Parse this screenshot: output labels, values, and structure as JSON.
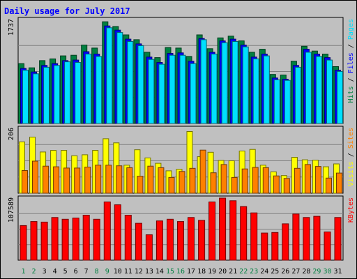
{
  "chart_data": {
    "type": "bar",
    "title": "Daily usage for July 2017",
    "categories": [
      "1",
      "2",
      "3",
      "4",
      "5",
      "6",
      "7",
      "8",
      "9",
      "10",
      "11",
      "12",
      "13",
      "14",
      "15",
      "16",
      "17",
      "18",
      "19",
      "20",
      "21",
      "22",
      "23",
      "24",
      "25",
      "26",
      "27",
      "28",
      "29",
      "30",
      "31"
    ],
    "weekend_days": [
      "1",
      "2",
      "8",
      "9",
      "15",
      "16",
      "22",
      "23",
      "29",
      "30"
    ],
    "panels": [
      {
        "id": "hits",
        "max_label": "1737",
        "ymax": 1737,
        "series": [
          {
            "name": "Hits",
            "color": "#008040",
            "values": [
              1000,
              930,
              1050,
              1080,
              1130,
              1140,
              1310,
              1260,
              1700,
              1620,
              1480,
              1400,
              1190,
              1100,
              1270,
              1260,
              1120,
              1480,
              1250,
              1430,
              1460,
              1380,
              1190,
              1240,
              820,
              810,
              1040,
              1290,
              1210,
              1160,
              950
            ]
          },
          {
            "name": "Files",
            "color": "#0000ff",
            "values": [
              920,
              860,
              970,
              1000,
              1050,
              1060,
              1200,
              1160,
              1630,
              1560,
              1410,
              1330,
              1110,
              1020,
              1170,
              1180,
              1040,
              1420,
              1190,
              1380,
              1410,
              1310,
              1110,
              1160,
              760,
              740,
              970,
              1240,
              1160,
              1100,
              890
            ]
          },
          {
            "name": "Pages",
            "color": "#00e0ff",
            "values": [
              890,
              830,
              940,
              970,
              1030,
              1020,
              1160,
              1120,
              1600,
              1520,
              1370,
              1300,
              1070,
              990,
              1140,
              1140,
              1000,
              1400,
              1160,
              1350,
              1370,
              1280,
              1080,
              1130,
              730,
              720,
              940,
              1190,
              1120,
              1060,
              870
            ]
          }
        ]
      },
      {
        "id": "visits",
        "max_label": "206",
        "ymax": 206,
        "series": [
          {
            "name": "Visits",
            "color": "#ffff00",
            "values": [
              163,
              178,
              131,
              136,
              136,
              119,
              122,
              136,
              173,
              160,
              89,
              138,
              112,
              95,
              71,
              76,
              196,
              116,
              130,
              104,
              103,
              134,
              139,
              89,
              68,
              56,
              114,
              106,
              105,
              84,
              93
            ]
          },
          {
            "name": "Sites",
            "color": "#ff8000",
            "values": [
              72,
              102,
              86,
              84,
              80,
              80,
              83,
              89,
              89,
              87,
              81,
              54,
              86,
              81,
              50,
              69,
              79,
              137,
              65,
              91,
              50,
              77,
              82,
              81,
              55,
              47,
              79,
              91,
              85,
              48,
              64
            ]
          }
        ]
      },
      {
        "id": "kbytes",
        "max_label": "107589",
        "ymax": 107589,
        "series": [
          {
            "name": "KBytes",
            "color": "#ff0000",
            "values": [
              60000,
              67000,
              66000,
              74000,
              71000,
              73000,
              78000,
              71000,
              101000,
              96000,
              78000,
              64000,
              44000,
              68000,
              71000,
              67000,
              74000,
              69000,
              101000,
              107589,
              103000,
              93000,
              82000,
              47000,
              48000,
              63000,
              80000,
              74000,
              76000,
              49000,
              74000
            ]
          }
        ]
      }
    ],
    "grid": true
  }
}
